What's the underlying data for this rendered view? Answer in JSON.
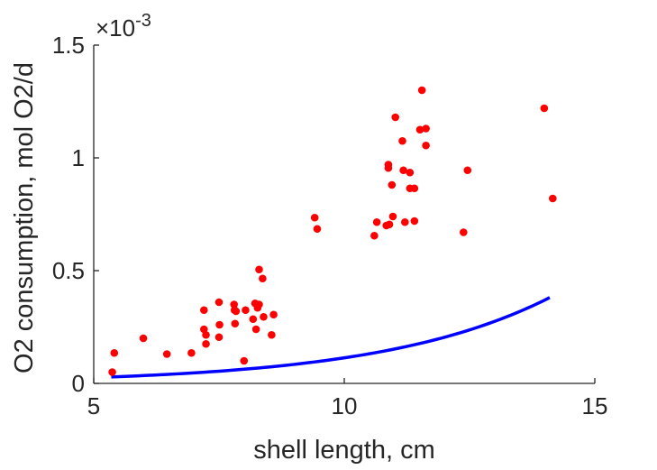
{
  "chart_data": {
    "type": "scatter",
    "xlabel": "shell length, cm",
    "ylabel": "O2 consumption, mol O2/d",
    "exponent_label": "×10",
    "exponent_power": "-3",
    "xlim": [
      5,
      15
    ],
    "ylim": [
      0,
      1.5
    ],
    "xticks": [
      5,
      10,
      15
    ],
    "xtick_labels": [
      "5",
      "10",
      "15"
    ],
    "yticks": [
      0,
      0.5,
      1,
      1.5
    ],
    "ytick_labels": [
      "0",
      "0.5",
      "1",
      "1.5"
    ],
    "y_scale_factor": 0.001,
    "grid": false,
    "colors": {
      "points": "#ff0000",
      "fit": "#0000ff",
      "axis": "#262626"
    },
    "series": [
      {
        "type": "scatter",
        "points": [
          [
            5.37,
            0.05
          ],
          [
            5.41,
            0.135
          ],
          [
            5.99,
            0.2
          ],
          [
            6.46,
            0.13
          ],
          [
            6.95,
            0.135
          ],
          [
            7.2,
            0.325
          ],
          [
            7.2,
            0.24
          ],
          [
            7.24,
            0.215
          ],
          [
            7.24,
            0.175
          ],
          [
            7.5,
            0.36
          ],
          [
            7.5,
            0.205
          ],
          [
            7.51,
            0.26
          ],
          [
            7.8,
            0.35
          ],
          [
            7.81,
            0.325
          ],
          [
            7.82,
            0.265
          ],
          [
            7.84,
            0.32
          ],
          [
            8.0,
            0.1
          ],
          [
            8.03,
            0.325
          ],
          [
            8.18,
            0.285
          ],
          [
            8.22,
            0.355
          ],
          [
            8.24,
            0.24
          ],
          [
            8.27,
            0.335
          ],
          [
            8.3,
            0.35
          ],
          [
            8.3,
            0.505
          ],
          [
            8.37,
            0.465
          ],
          [
            8.39,
            0.295
          ],
          [
            8.55,
            0.215
          ],
          [
            8.59,
            0.305
          ],
          [
            9.41,
            0.735
          ],
          [
            9.46,
            0.685
          ],
          [
            10.6,
            0.655
          ],
          [
            10.65,
            0.715
          ],
          [
            10.84,
            0.7
          ],
          [
            10.9,
            0.705
          ],
          [
            10.88,
            0.97
          ],
          [
            10.88,
            0.955
          ],
          [
            10.95,
            0.88
          ],
          [
            10.97,
            0.74
          ],
          [
            11.02,
            1.18
          ],
          [
            11.16,
            1.075
          ],
          [
            11.18,
            0.945
          ],
          [
            11.21,
            0.715
          ],
          [
            11.31,
            0.935
          ],
          [
            11.31,
            0.865
          ],
          [
            11.4,
            0.865
          ],
          [
            11.4,
            0.72
          ],
          [
            11.51,
            1.125
          ],
          [
            11.55,
            1.3
          ],
          [
            11.63,
            1.055
          ],
          [
            11.63,
            1.13
          ],
          [
            12.38,
            0.67
          ],
          [
            12.46,
            0.945
          ],
          [
            13.99,
            1.22
          ],
          [
            14.16,
            0.82
          ]
        ]
      },
      {
        "type": "line",
        "fit": {
          "a": 0.0059,
          "b": 0.2955,
          "x_start": 5.35,
          "x_end": 14.1
        }
      }
    ]
  }
}
